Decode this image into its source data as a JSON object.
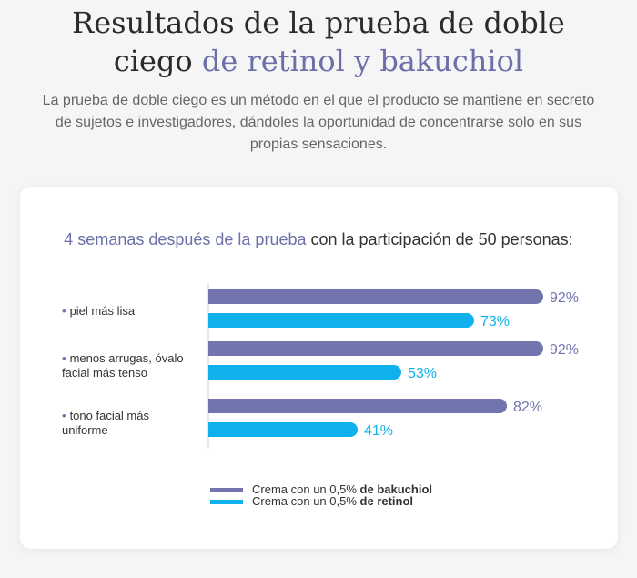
{
  "header": {
    "title_part1": "Resultados de la prueba de doble",
    "title_part2": "ciego",
    "title_accent": "de retinol y bakuchiol",
    "subtitle": "La prueba de doble ciego es un método en el que el producto se mantiene en secreto de sujetos e investigadores, dándoles la oportunidad de concentrarse solo en sus propias sensaciones."
  },
  "chart_heading": {
    "highlight": "4 semanas después de la prueba",
    "rest": "con la participación de 50 personas:"
  },
  "colors": {
    "bakuchiol": "#7275ad",
    "retinol": "#0fb1ec",
    "accent": "#6c6fa8"
  },
  "chart_data": {
    "type": "bar",
    "orientation": "horizontal",
    "categories": [
      "piel más lisa",
      "menos arrugas, óvalo facial más tenso",
      "tono facial más uniforme"
    ],
    "series": [
      {
        "name": "Crema con un 0,5% de bakuchiol",
        "values": [
          92,
          92,
          82
        ]
      },
      {
        "name": "Crema con un 0,5% de retinol",
        "values": [
          73,
          53,
          41
        ]
      }
    ],
    "value_suffix": "%",
    "xlim": [
      0,
      100
    ]
  },
  "legend": [
    {
      "prefix": "Crema con un 0,5%",
      "bold": "de bakuchiol"
    },
    {
      "prefix": "Crema con un 0,5%",
      "bold": "de retinol"
    }
  ]
}
